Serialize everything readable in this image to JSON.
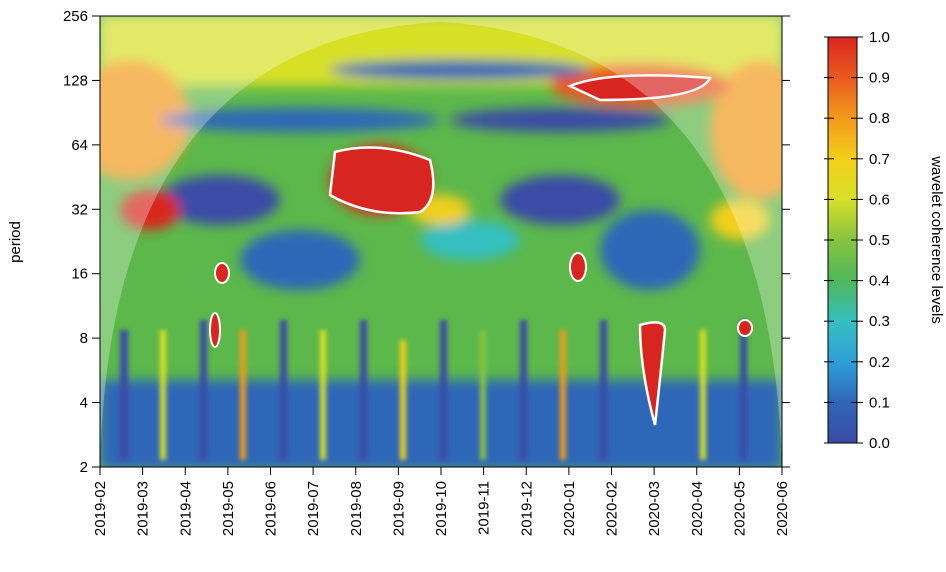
{
  "chart_data": {
    "type": "wavelet-coherence",
    "y_label": "period",
    "y_log_base": 2,
    "ylim": [
      2,
      256
    ],
    "yticks": [
      2,
      4,
      8,
      16,
      32,
      64,
      128,
      256
    ],
    "x": [
      "2019-02",
      "2019-03",
      "2019-04",
      "2019-05",
      "2019-06",
      "2019-07",
      "2019-08",
      "2019-09",
      "2019-10",
      "2019-11",
      "2019-12",
      "2020-01",
      "2020-02",
      "2020-03",
      "2020-04",
      "2020-05",
      "2020-06"
    ],
    "colorbar": {
      "label": "wavelet coherence levels",
      "lim": [
        0,
        1
      ],
      "ticks": [
        {
          "value": 0,
          "label": "0.0"
        },
        {
          "value": 0.1,
          "label": "0.1"
        },
        {
          "value": 0.2,
          "label": "0.2"
        },
        {
          "value": 0.3,
          "label": "0.3"
        },
        {
          "value": 0.4,
          "label": "0.4"
        },
        {
          "value": 0.5,
          "label": "0.5"
        },
        {
          "value": 0.6,
          "label": "0.6"
        },
        {
          "value": 0.7,
          "label": "0.7"
        },
        {
          "value": 0.8,
          "label": "0.8"
        },
        {
          "value": 0.9,
          "label": "0.9"
        },
        {
          "value": 1,
          "label": "1.0"
        }
      ],
      "colors": [
        "#3a4ba6",
        "#2f66b8",
        "#2f9fd8",
        "#36bfc0",
        "#4fb85a",
        "#86c440",
        "#d8e028",
        "#f3cf1a",
        "#f39a1c",
        "#ea5a20",
        "#d9251f"
      ]
    }
  }
}
